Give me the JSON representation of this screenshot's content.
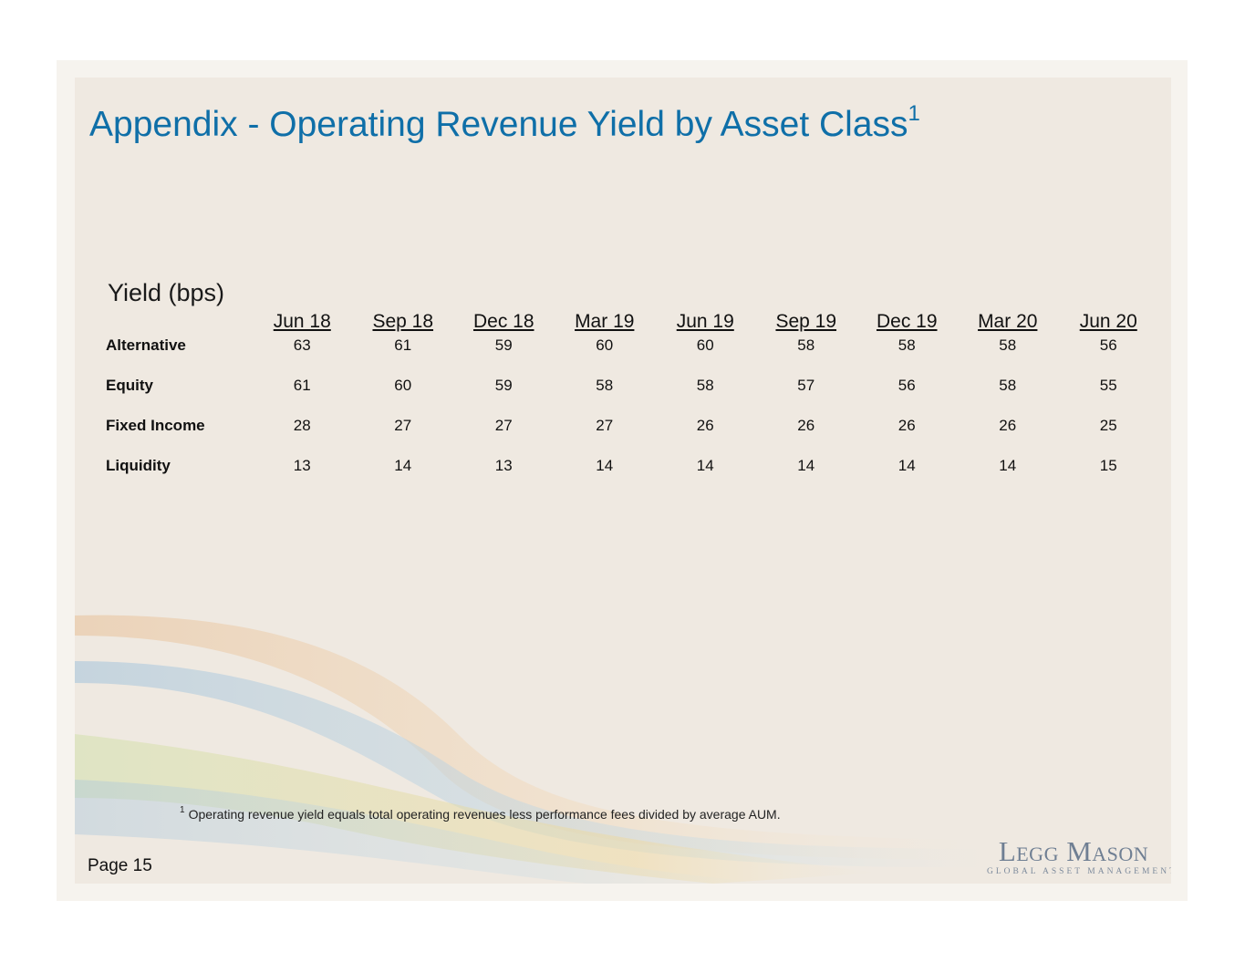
{
  "slide": {
    "title": "Appendix - Operating Revenue Yield by Asset Class",
    "title_footnote_marker": "1",
    "units_label": "Yield (bps)",
    "page_label": "Page 15",
    "footnote_marker": "1",
    "footnote": "Operating revenue yield equals total operating revenues less performance fees divided by average AUM.",
    "title_color": "#0f6fa8"
  },
  "table": {
    "columns": [
      "Jun 18",
      "Sep 18",
      "Dec 18",
      "Mar 19",
      "Jun 19",
      "Sep 19",
      "Dec 19",
      "Mar 20",
      "Jun 20"
    ],
    "rows": [
      {
        "label": "Alternative",
        "values": [
          "63",
          "61",
          "59",
          "60",
          "60",
          "58",
          "58",
          "58",
          "56"
        ]
      },
      {
        "label": "Equity",
        "values": [
          "61",
          "60",
          "59",
          "58",
          "58",
          "57",
          "56",
          "58",
          "55"
        ]
      },
      {
        "label": "Fixed Income",
        "values": [
          "28",
          "27",
          "27",
          "27",
          "26",
          "26",
          "26",
          "26",
          "25"
        ]
      },
      {
        "label": "Liquidity",
        "values": [
          "13",
          "14",
          "13",
          "14",
          "14",
          "14",
          "14",
          "14",
          "15"
        ]
      }
    ]
  },
  "logo": {
    "wordmark": "Legg Mason",
    "tagline": "GLOBAL ASSET MANAGEMENT",
    "color": "#6f7f93"
  }
}
